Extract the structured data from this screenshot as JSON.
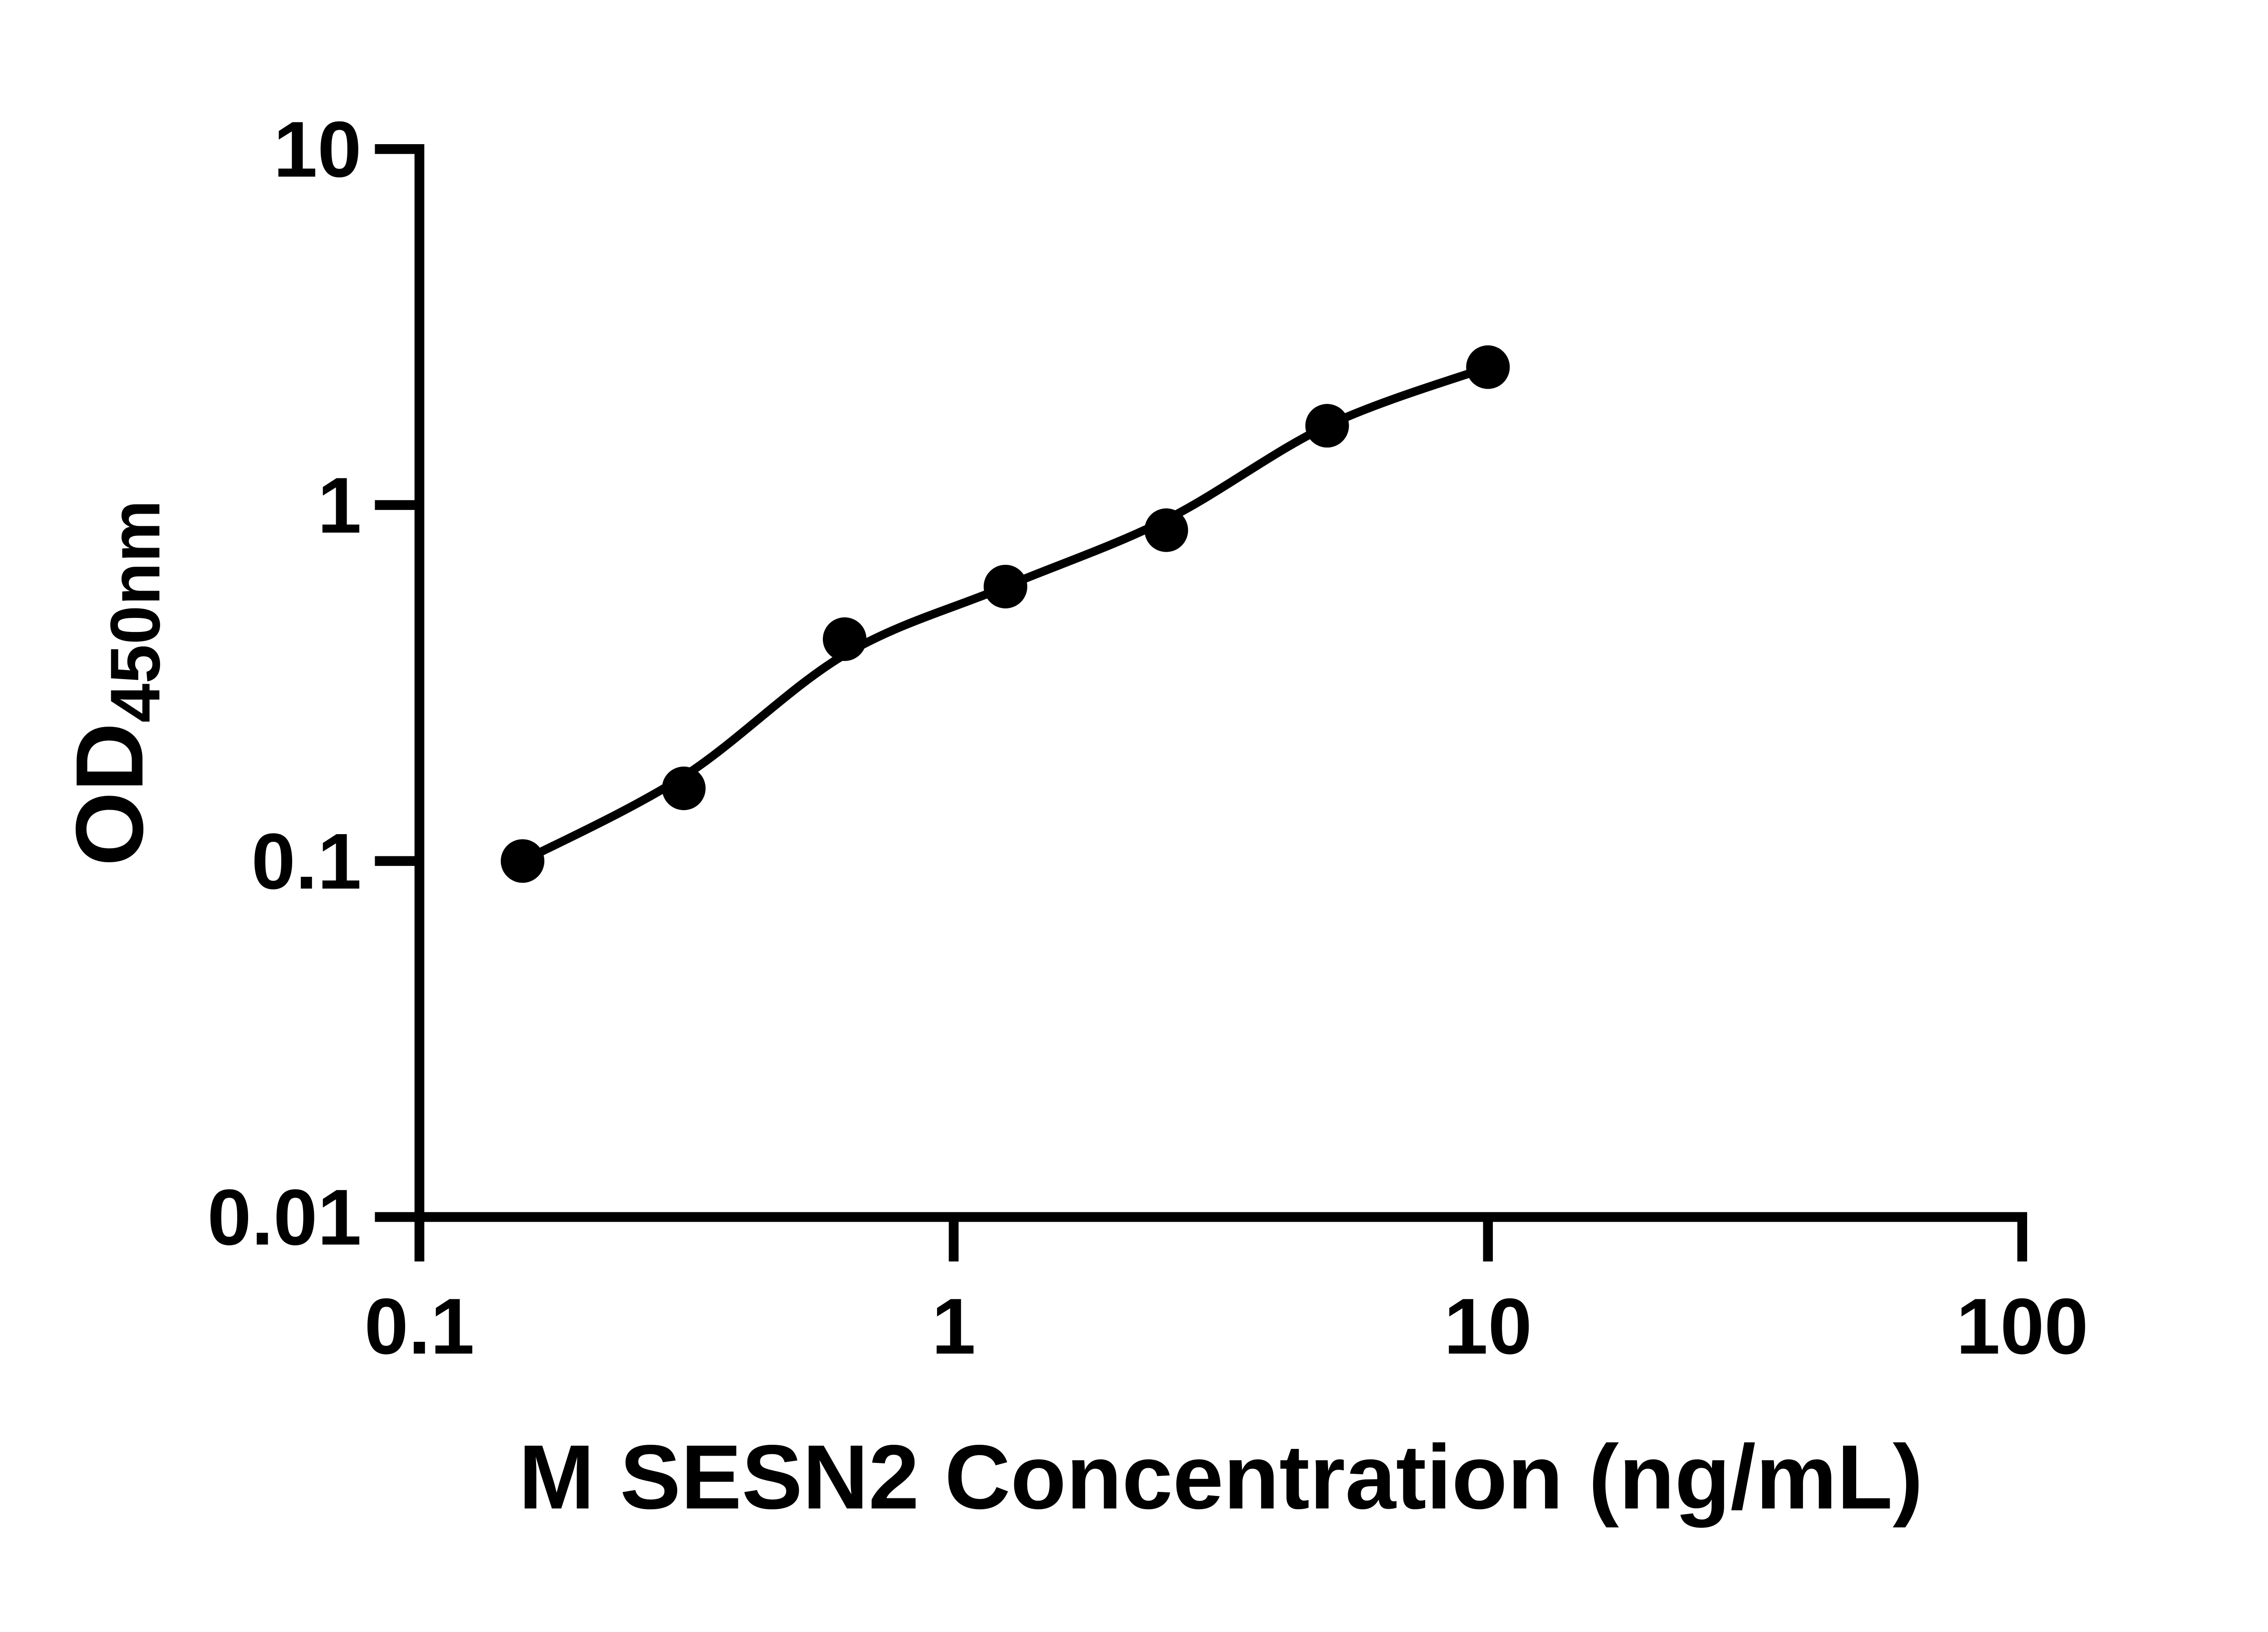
{
  "figure": {
    "background": "#ffffff",
    "ink_color": "#000000",
    "ylabel_main": "OD",
    "ylabel_sub": "450nm"
  },
  "chart_data": {
    "type": "scatter",
    "title": "",
    "xlabel": "M SESN2 Concentration (ng/mL)",
    "ylabel": "OD450nm",
    "x_scale": "log10",
    "y_scale": "log10",
    "xlim": [
      0.1,
      100
    ],
    "ylim": [
      0.01,
      10
    ],
    "x_ticks": [
      0.1,
      1,
      10,
      100
    ],
    "y_ticks": [
      0.01,
      0.1,
      1,
      10
    ],
    "x_tick_labels": [
      "0.1",
      "1",
      "10",
      "100"
    ],
    "y_tick_labels": [
      "0.01",
      "0.1",
      "1",
      "10"
    ],
    "grid": false,
    "legend": "none",
    "marker_color": "#000000",
    "line_color": "#000000",
    "points": {
      "x": [
        0.156,
        0.3125,
        0.625,
        1.25,
        2.5,
        5,
        10
      ],
      "y": [
        0.1,
        0.16,
        0.42,
        0.59,
        0.85,
        1.67,
        2.44
      ]
    },
    "trend_curve": {
      "x": [
        0.156,
        0.3125,
        0.625,
        1.25,
        2.5,
        5,
        10
      ],
      "y": [
        0.1,
        0.173,
        0.38,
        0.59,
        0.91,
        1.67,
        2.44
      ]
    }
  }
}
